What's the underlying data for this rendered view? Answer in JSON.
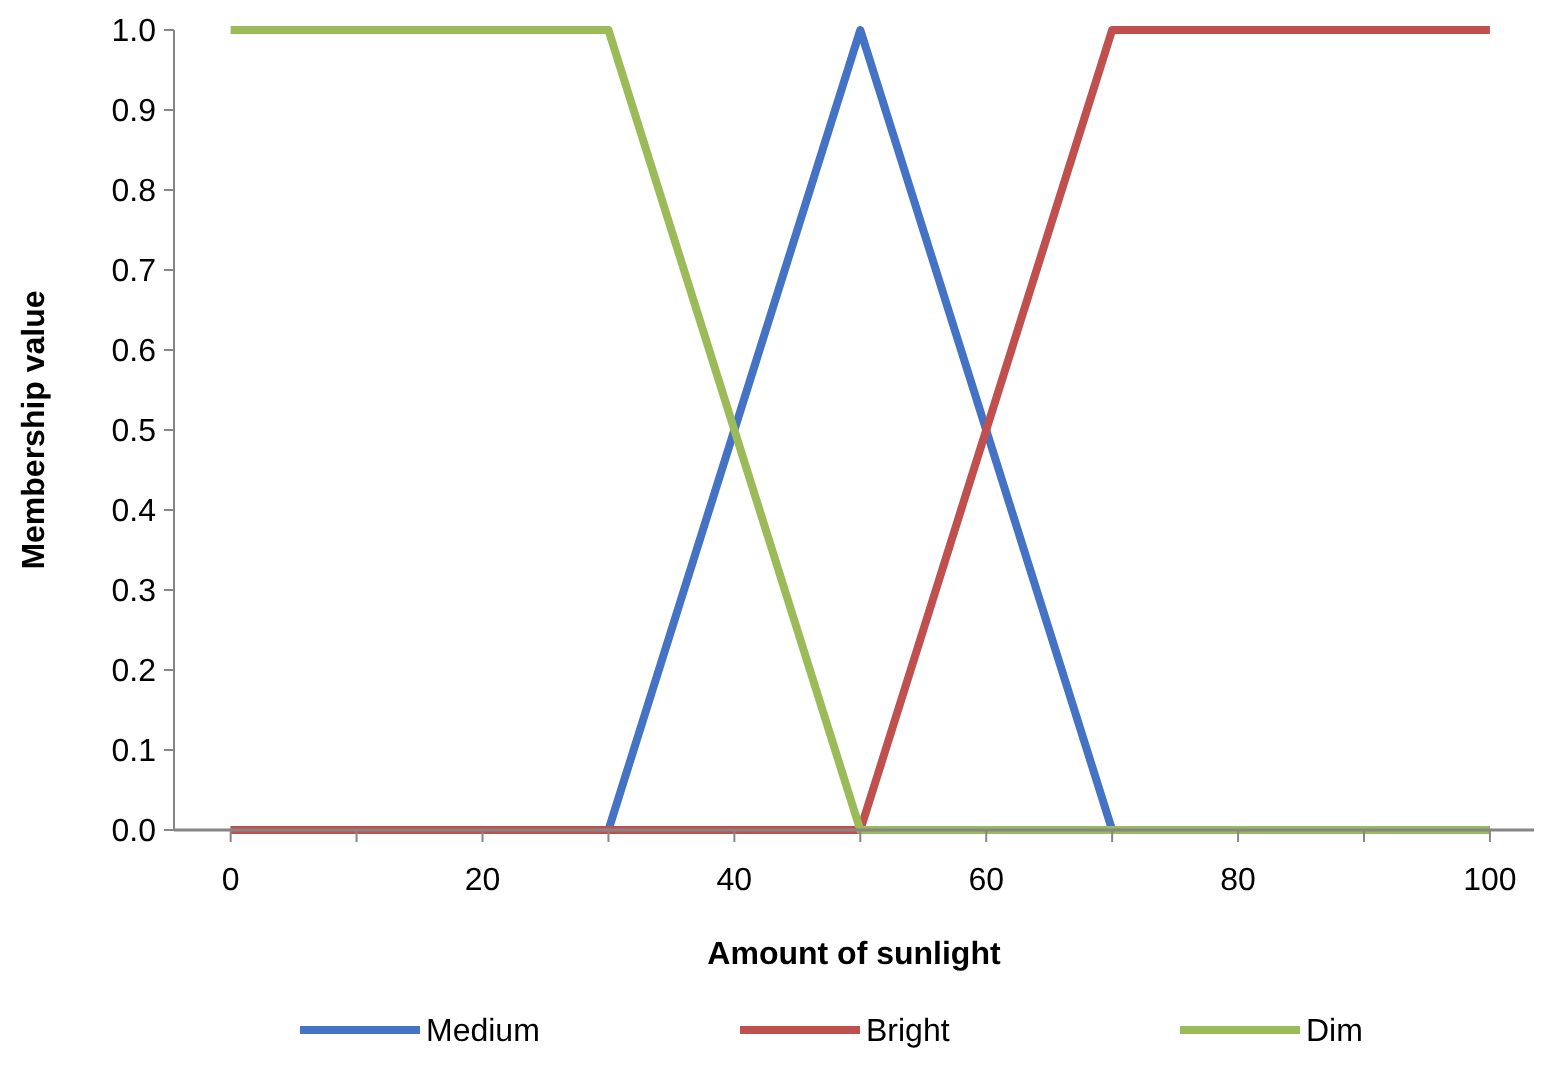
{
  "chart_data": {
    "type": "line",
    "xlabel": "Amount of sunlight",
    "ylabel": "Membership value",
    "series": [
      {
        "name": "Medium",
        "color": "#4472c4",
        "x": [
          0,
          30,
          50,
          70,
          100
        ],
        "values": [
          0,
          0,
          1,
          0,
          0
        ]
      },
      {
        "name": "Bright",
        "color": "#c0504d",
        "x": [
          0,
          50,
          70,
          100
        ],
        "values": [
          0,
          0,
          1,
          1
        ]
      },
      {
        "name": "Dim",
        "color": "#9bbb59",
        "x": [
          0,
          30,
          50,
          100
        ],
        "values": [
          1,
          1,
          0,
          0
        ]
      }
    ],
    "xlim": [
      -4.5,
      103.5
    ],
    "ylim": [
      0,
      1
    ],
    "xticks": [
      0,
      {
        "value": 10,
        "label": null
      },
      20,
      {
        "value": 30,
        "label": null
      },
      40,
      {
        "value": 50,
        "label": null
      },
      60,
      {
        "value": 70,
        "label": null
      },
      80,
      {
        "value": 90,
        "label": null
      },
      100
    ],
    "yticks": [
      {
        "value": 0,
        "label": "0.0"
      },
      {
        "value": 0.1,
        "label": "0.1"
      },
      {
        "value": 0.2,
        "label": "0.2"
      },
      {
        "value": 0.3,
        "label": "0.3"
      },
      {
        "value": 0.4,
        "label": "0.4"
      },
      {
        "value": 0.5,
        "label": "0.5"
      },
      {
        "value": 0.6,
        "label": "0.6"
      },
      {
        "value": 0.7,
        "label": "0.7"
      },
      {
        "value": 0.8,
        "label": "0.8"
      },
      {
        "value": 0.9,
        "label": "0.9"
      },
      {
        "value": 1,
        "label": "1.0"
      }
    ],
    "grid": false,
    "legend": "bottom",
    "marker": "none",
    "line_style": "solid"
  }
}
